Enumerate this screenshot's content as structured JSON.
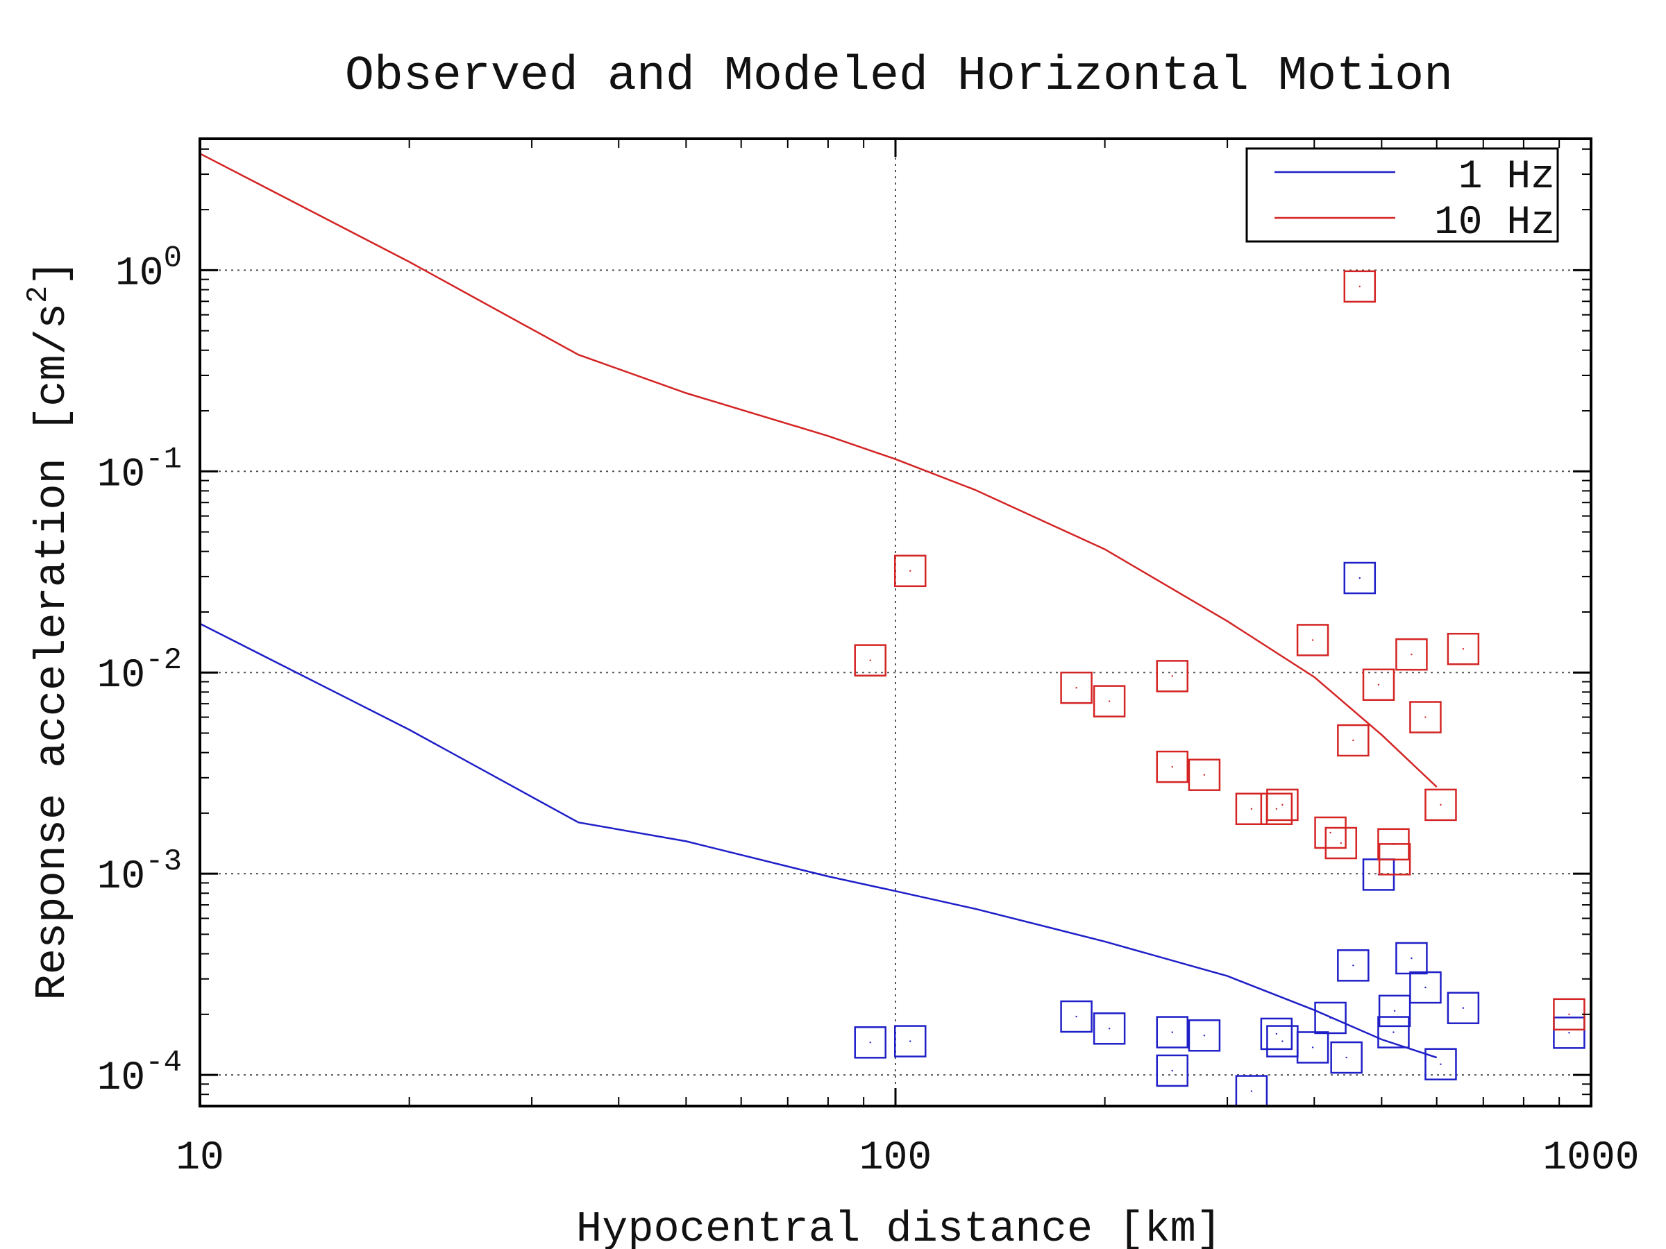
{
  "chart_data": {
    "type": "scatter",
    "title": "Observed and Modeled Horizontal Motion",
    "xlabel": "Hypocentral distance [km]",
    "ylabel": "Response acceleration [cm/s^2]",
    "ylabel_parts": {
      "main": "Response acceleration [cm/s",
      "sup": "2",
      "end": "]"
    },
    "xscale": "log",
    "yscale": "log",
    "xlim": [
      10,
      1000
    ],
    "ylim": [
      7e-05,
      4.5
    ],
    "x_ticks": [
      {
        "value": 10,
        "label": "10"
      },
      {
        "value": 100,
        "label": "100"
      },
      {
        "value": 1000,
        "label": "1000"
      }
    ],
    "y_ticks": [
      {
        "value": 0.0001,
        "base": "10",
        "exp": "-4"
      },
      {
        "value": 0.001,
        "base": "10",
        "exp": "-3"
      },
      {
        "value": 0.01,
        "base": "10",
        "exp": "-2"
      },
      {
        "value": 0.1,
        "base": "10",
        "exp": "-1"
      },
      {
        "value": 1,
        "base": "10",
        "exp": "0"
      }
    ],
    "grid": true,
    "legend_position": "top-right",
    "series": [
      {
        "name": "1 Hz",
        "color": "#1f1fc8",
        "model": [
          {
            "x": 10,
            "y": 0.0175
          },
          {
            "x": 20,
            "y": 0.0052
          },
          {
            "x": 35,
            "y": 0.0018
          },
          {
            "x": 50,
            "y": 0.00145
          },
          {
            "x": 80,
            "y": 0.00097
          },
          {
            "x": 100,
            "y": 0.00082
          },
          {
            "x": 130,
            "y": 0.00067
          },
          {
            "x": 200,
            "y": 0.00046
          },
          {
            "x": 300,
            "y": 0.00031
          },
          {
            "x": 400,
            "y": 0.00021
          },
          {
            "x": 500,
            "y": 0.00015
          },
          {
            "x": 600,
            "y": 0.000122
          }
        ],
        "observed": [
          {
            "x": 92,
            "y": 0.000145
          },
          {
            "x": 105,
            "y": 0.000147
          },
          {
            "x": 182,
            "y": 0.000195
          },
          {
            "x": 203,
            "y": 0.00017
          },
          {
            "x": 250,
            "y": 0.000163
          },
          {
            "x": 250,
            "y": 0.000105
          },
          {
            "x": 278,
            "y": 0.000157
          },
          {
            "x": 325,
            "y": 8.3e-05
          },
          {
            "x": 353,
            "y": 0.00016
          },
          {
            "x": 360,
            "y": 0.000147
          },
          {
            "x": 398,
            "y": 0.000137
          },
          {
            "x": 422,
            "y": 0.000192
          },
          {
            "x": 445,
            "y": 0.000122
          },
          {
            "x": 455,
            "y": 0.00035
          },
          {
            "x": 465,
            "y": 0.0295
          },
          {
            "x": 495,
            "y": 0.00099
          },
          {
            "x": 520,
            "y": 0.000163
          },
          {
            "x": 522,
            "y": 0.000208
          },
          {
            "x": 552,
            "y": 0.00038
          },
          {
            "x": 578,
            "y": 0.000272
          },
          {
            "x": 608,
            "y": 0.000113
          },
          {
            "x": 655,
            "y": 0.000215
          },
          {
            "x": 930,
            "y": 0.000162
          }
        ]
      },
      {
        "name": "10 Hz",
        "color": "#d42424",
        "model": [
          {
            "x": 10,
            "y": 3.8
          },
          {
            "x": 20,
            "y": 1.1
          },
          {
            "x": 35,
            "y": 0.38
          },
          {
            "x": 50,
            "y": 0.245
          },
          {
            "x": 80,
            "y": 0.15
          },
          {
            "x": 100,
            "y": 0.115
          },
          {
            "x": 130,
            "y": 0.081
          },
          {
            "x": 200,
            "y": 0.041
          },
          {
            "x": 300,
            "y": 0.018
          },
          {
            "x": 400,
            "y": 0.0095
          },
          {
            "x": 500,
            "y": 0.0049
          },
          {
            "x": 600,
            "y": 0.0027
          }
        ],
        "observed": [
          {
            "x": 92,
            "y": 0.0115
          },
          {
            "x": 105,
            "y": 0.032
          },
          {
            "x": 182,
            "y": 0.0084
          },
          {
            "x": 203,
            "y": 0.0072
          },
          {
            "x": 250,
            "y": 0.0096
          },
          {
            "x": 250,
            "y": 0.0034
          },
          {
            "x": 278,
            "y": 0.0031
          },
          {
            "x": 325,
            "y": 0.0021
          },
          {
            "x": 353,
            "y": 0.0021
          },
          {
            "x": 360,
            "y": 0.0022
          },
          {
            "x": 398,
            "y": 0.0145
          },
          {
            "x": 422,
            "y": 0.0016
          },
          {
            "x": 437,
            "y": 0.00142
          },
          {
            "x": 455,
            "y": 0.0046
          },
          {
            "x": 465,
            "y": 0.83
          },
          {
            "x": 495,
            "y": 0.0087
          },
          {
            "x": 520,
            "y": 0.0014
          },
          {
            "x": 522,
            "y": 0.00118
          },
          {
            "x": 552,
            "y": 0.0123
          },
          {
            "x": 578,
            "y": 0.006
          },
          {
            "x": 608,
            "y": 0.0022
          },
          {
            "x": 655,
            "y": 0.0131
          },
          {
            "x": 930,
            "y": 0.0002
          }
        ]
      }
    ]
  }
}
